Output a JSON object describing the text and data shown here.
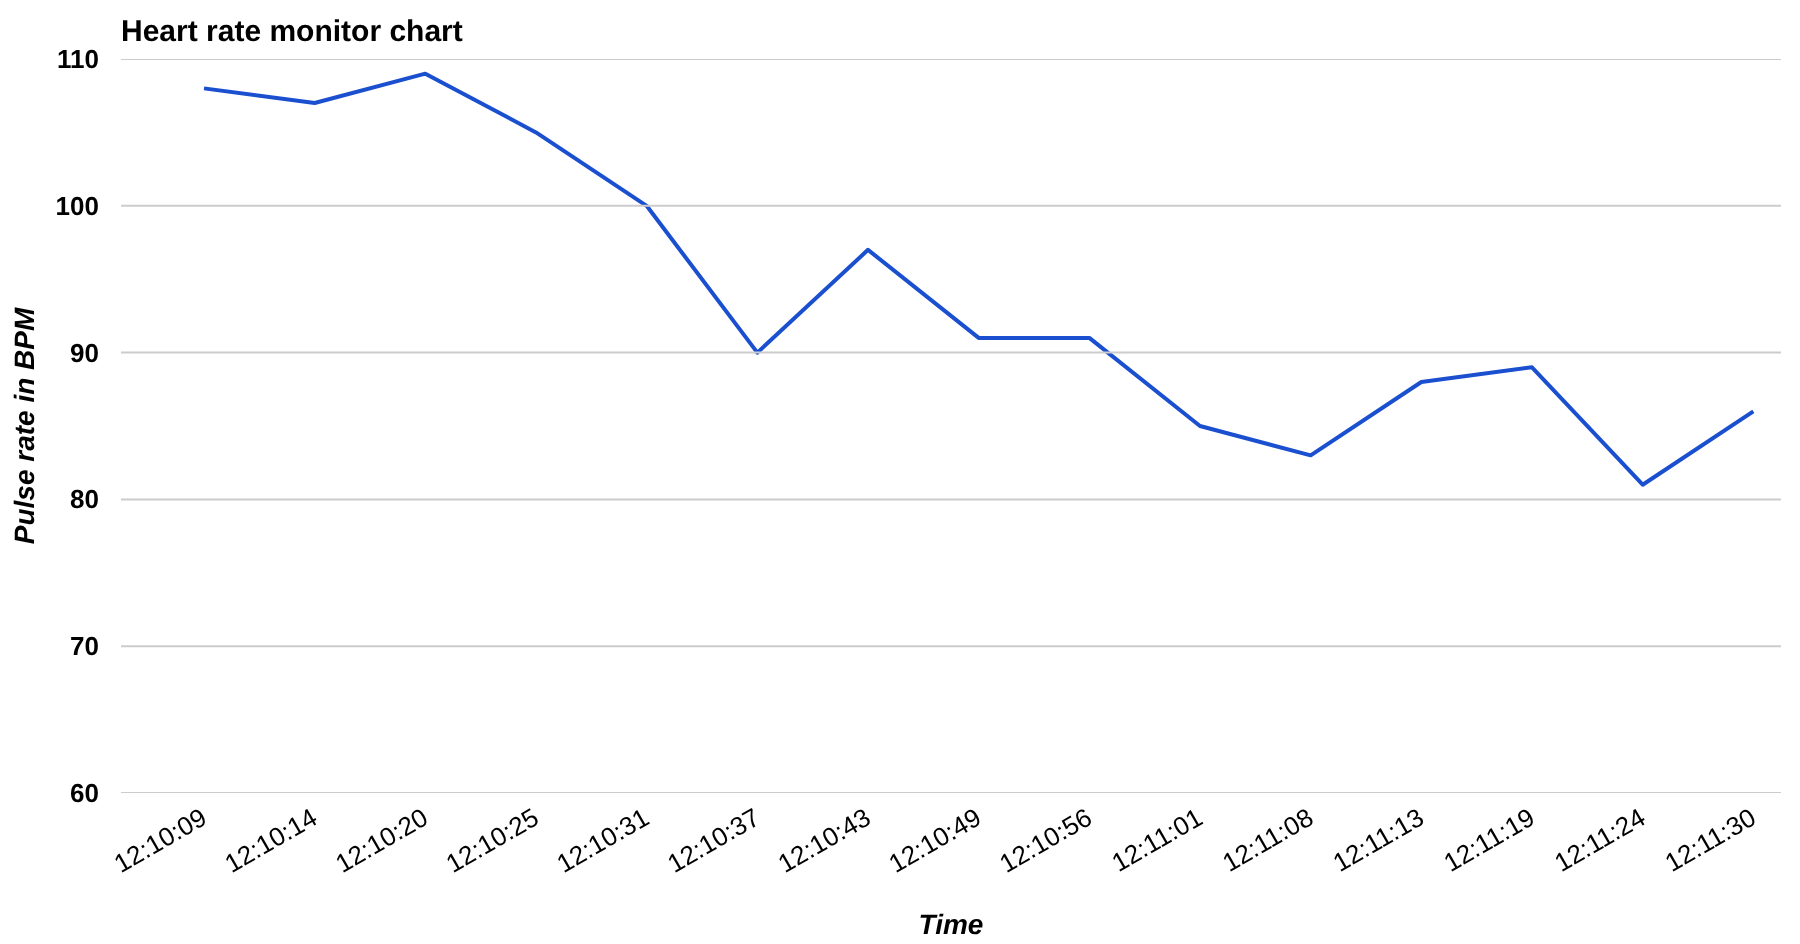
{
  "chart_data": {
    "type": "line",
    "title": "Heart rate monitor chart",
    "xlabel": "Time",
    "ylabel": "Pulse rate in BPM",
    "categories": [
      "12:10:09",
      "12:10:14",
      "12:10:20",
      "12:10:25",
      "12:10:31",
      "12:10:37",
      "12:10:43",
      "12:10:49",
      "12:10:56",
      "12:11:01",
      "12:11:08",
      "12:11:13",
      "12:11:19",
      "12:11:24",
      "12:11:30"
    ],
    "series": [
      {
        "color": "#1a4fcf",
        "values": [
          108,
          107,
          109,
          105,
          100,
          90,
          97,
          91,
          91,
          85,
          83,
          88,
          89,
          81,
          86
        ]
      }
    ],
    "ylim": [
      60,
      110
    ],
    "yticks": [
      60,
      70,
      80,
      90,
      100,
      110
    ],
    "grid": "y",
    "marker": "none",
    "line_style": "solid"
  }
}
